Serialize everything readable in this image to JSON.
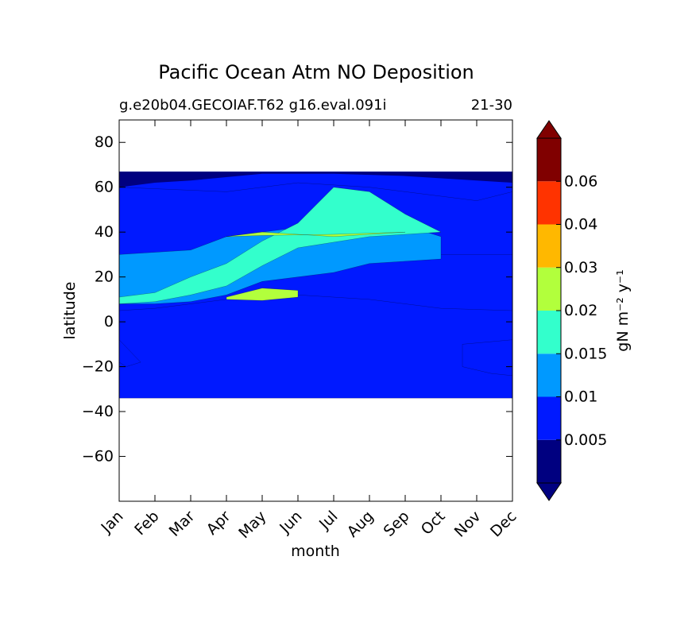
{
  "chart_data": {
    "type": "contourf",
    "title": "Pacific Ocean Atm NO Deposition",
    "subtitle_left": "g.e20b04.GECOIAF.T62 g16.eval.091i",
    "subtitle_right": "21-30",
    "xlabel": "month",
    "ylabel": "latitude",
    "x_categories": [
      "Jan",
      "Feb",
      "Mar",
      "Apr",
      "May",
      "Jun",
      "Jul",
      "Aug",
      "Sep",
      "Oct",
      "Nov",
      "Dec"
    ],
    "xlim": [
      1,
      12
    ],
    "ylim": [
      -80,
      90
    ],
    "y_ticks": [
      80,
      60,
      40,
      20,
      0,
      -20,
      -40,
      -60
    ],
    "y_tick_labels": [
      "80",
      "60",
      "40",
      "20",
      "0",
      "−20",
      "−40",
      "−60"
    ],
    "data_lat_range": [
      -34,
      67
    ],
    "colorbar": {
      "label": "gN m⁻² y⁻¹",
      "levels": [
        0.0,
        0.005,
        0.01,
        0.015,
        0.02,
        0.03,
        0.04,
        0.06,
        0.07
      ],
      "tick_values": [
        0.005,
        0.01,
        0.015,
        0.02,
        0.03,
        0.04,
        0.06
      ],
      "tick_labels": [
        "0.005",
        "0.01",
        "0.015",
        "0.02",
        "0.03",
        "0.04",
        "0.06"
      ],
      "colors": [
        "#000080",
        "#0019ff",
        "#0099ff",
        "#33ffcc",
        "#b2ff3c",
        "#ffb800",
        "#ff3300",
        "#800000"
      ],
      "extend": "both"
    },
    "regions": [
      {
        "level": "0.005-0.01",
        "month_lat": [
          [
            1,
            -34
          ],
          [
            12,
            -34
          ],
          [
            12,
            -24
          ],
          [
            11.4,
            -23
          ],
          [
            10.6,
            -20
          ],
          [
            10.6,
            -10
          ],
          [
            12,
            -8
          ],
          [
            12,
            5
          ],
          [
            10,
            6
          ],
          [
            8,
            10
          ],
          [
            6,
            12
          ],
          [
            4,
            10
          ],
          [
            2,
            6
          ],
          [
            1,
            5
          ],
          [
            1,
            5
          ],
          [
            1,
            -8
          ],
          [
            1.6,
            -18
          ],
          [
            1.2,
            -20
          ],
          [
            1,
            -18
          ]
        ]
      },
      {
        "level": "0.005-0.01",
        "month_lat": [
          [
            1,
            60
          ],
          [
            4,
            58
          ],
          [
            6,
            62
          ],
          [
            8,
            60
          ],
          [
            10,
            56
          ],
          [
            11,
            54
          ],
          [
            12,
            58
          ],
          [
            12,
            30
          ],
          [
            10,
            30
          ],
          [
            8,
            32
          ],
          [
            6,
            34
          ],
          [
            4,
            38
          ],
          [
            3,
            30
          ],
          [
            2,
            28
          ],
          [
            1,
            30
          ]
        ]
      },
      {
        "level": "0.01-0.015",
        "month_lat": [
          [
            1,
            30
          ],
          [
            3,
            32
          ],
          [
            4,
            38
          ],
          [
            6,
            42
          ],
          [
            8,
            44
          ],
          [
            9,
            43
          ],
          [
            10,
            38
          ],
          [
            10,
            28
          ],
          [
            8,
            26
          ],
          [
            7,
            22
          ],
          [
            5,
            18
          ],
          [
            4,
            12
          ],
          [
            3,
            9
          ],
          [
            2,
            8
          ],
          [
            1,
            8
          ]
        ]
      },
      {
        "level": "0.015-0.02",
        "month_lat": [
          [
            1,
            11
          ],
          [
            2,
            13
          ],
          [
            3,
            20
          ],
          [
            4,
            26
          ],
          [
            5,
            36
          ],
          [
            6,
            44
          ],
          [
            7,
            60
          ],
          [
            8,
            58
          ],
          [
            9,
            48
          ],
          [
            10,
            40
          ],
          [
            8,
            38
          ],
          [
            6,
            33
          ],
          [
            5,
            25
          ],
          [
            4,
            16
          ],
          [
            3,
            12
          ],
          [
            2,
            9
          ],
          [
            1,
            8
          ]
        ]
      },
      {
        "level": "0.02-0.03",
        "month_lat": [
          [
            4,
            38
          ],
          [
            5,
            40
          ],
          [
            6,
            39
          ],
          [
            7,
            38
          ],
          [
            8,
            39
          ],
          [
            9,
            40
          ],
          [
            7,
            39
          ],
          [
            5,
            38.5
          ],
          [
            4,
            38
          ]
        ]
      },
      {
        "level": "0.02-0.03",
        "month_lat": [
          [
            4,
            11
          ],
          [
            5,
            15
          ],
          [
            6,
            14
          ],
          [
            6,
            11
          ],
          [
            5,
            9.5
          ],
          [
            4,
            10
          ]
        ]
      }
    ]
  }
}
